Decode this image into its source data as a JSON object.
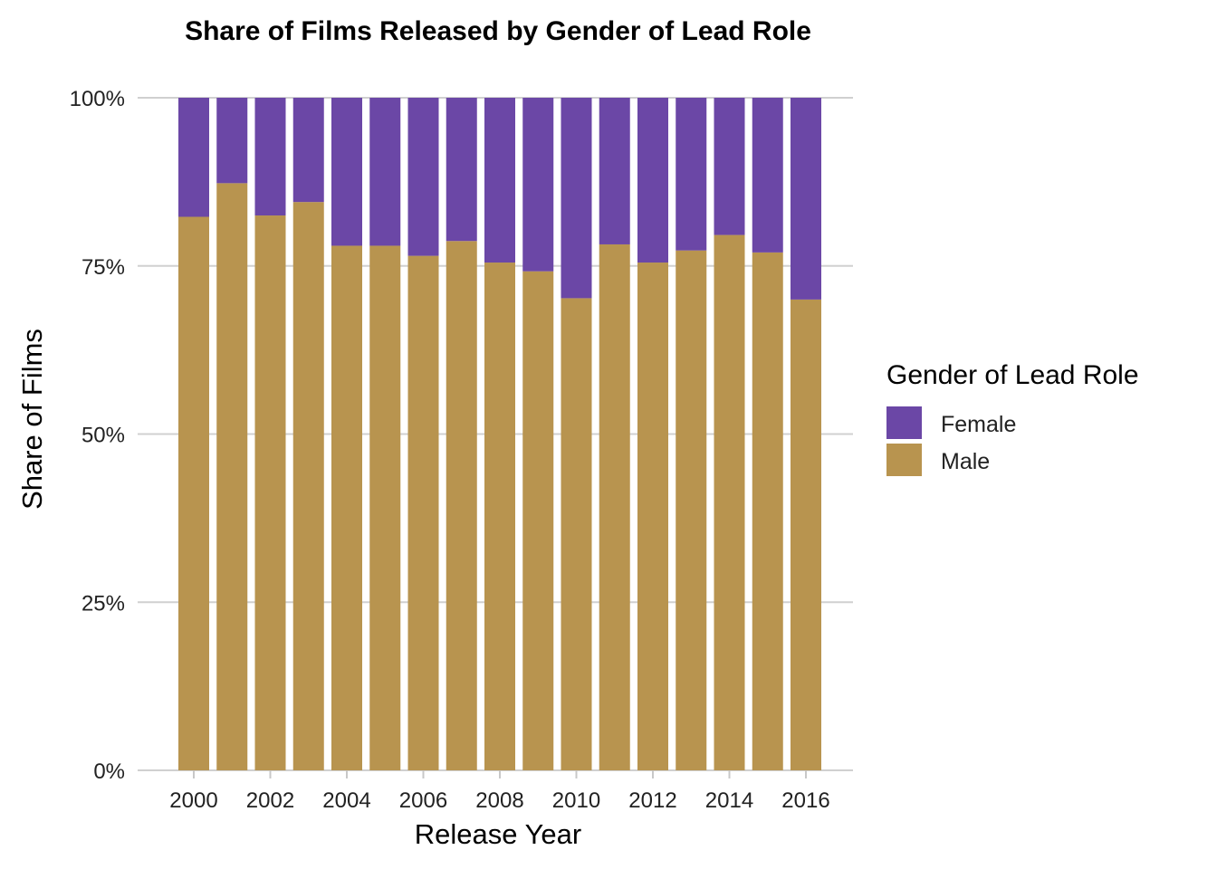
{
  "chart_data": {
    "type": "bar",
    "stacked": true,
    "percent": true,
    "title": "Share of Films Released by Gender of Lead Role",
    "xlabel": "Release Year",
    "ylabel": "Share of Films",
    "ylim": [
      0,
      100
    ],
    "y_ticks": [
      "0%",
      "25%",
      "50%",
      "75%",
      "100%"
    ],
    "x_ticks": [
      "2000",
      "2002",
      "2004",
      "2006",
      "2008",
      "2010",
      "2012",
      "2014",
      "2016"
    ],
    "categories": [
      "2000",
      "2001",
      "2002",
      "2003",
      "2004",
      "2005",
      "2006",
      "2007",
      "2008",
      "2009",
      "2010",
      "2011",
      "2012",
      "2013",
      "2014",
      "2015",
      "2016"
    ],
    "series": [
      {
        "name": "Male",
        "color": "#B8944F",
        "values": [
          82.3,
          87.3,
          82.5,
          84.5,
          78.0,
          78.0,
          76.5,
          78.7,
          75.5,
          74.2,
          70.2,
          78.2,
          75.5,
          77.3,
          79.6,
          77.0,
          70.0
        ]
      },
      {
        "name": "Female",
        "color": "#6B47A6",
        "values": [
          17.7,
          12.7,
          17.5,
          15.5,
          22.0,
          22.0,
          23.5,
          21.3,
          24.5,
          25.8,
          29.8,
          21.8,
          24.5,
          22.7,
          20.4,
          23.0,
          30.0
        ]
      }
    ],
    "grid": true,
    "legend": {
      "title": "Gender of Lead Role",
      "position": "right",
      "entries": [
        "Female",
        "Male"
      ]
    }
  }
}
